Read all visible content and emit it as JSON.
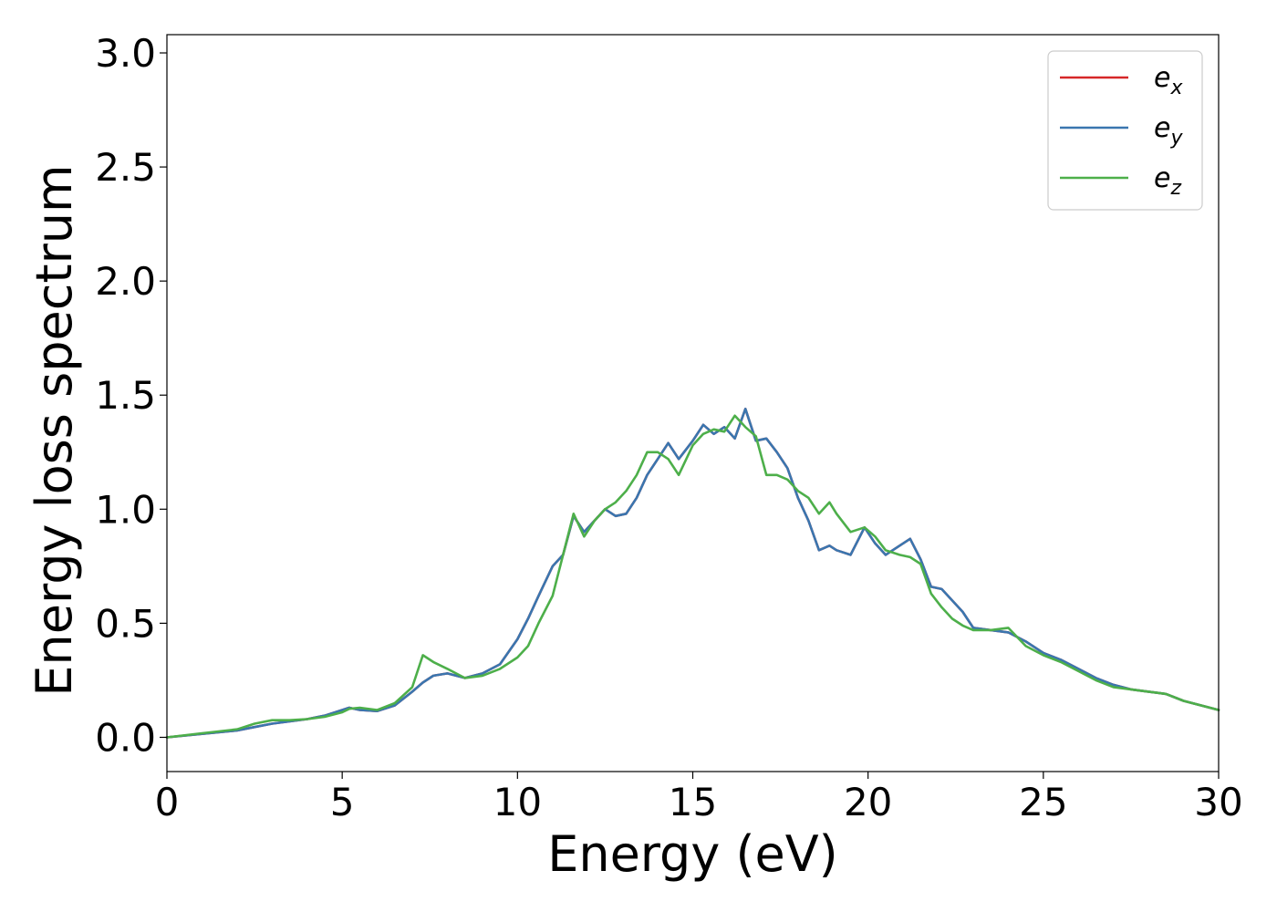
{
  "chart_data": {
    "type": "line",
    "title": "",
    "xlabel": "Energy (eV)",
    "ylabel": "Energy loss spectrum",
    "xlim": [
      0,
      30
    ],
    "ylim": [
      -0.15,
      3.08
    ],
    "xticks": [
      0,
      5,
      10,
      15,
      20,
      25,
      30
    ],
    "yticks": [
      0.0,
      0.5,
      1.0,
      1.5,
      2.0,
      2.5,
      3.0
    ],
    "xtick_labels": [
      "0",
      "5",
      "10",
      "15",
      "20",
      "25",
      "30"
    ],
    "ytick_labels": [
      "0.0",
      "0.5",
      "1.0",
      "1.5",
      "2.0",
      "2.5",
      "3.0"
    ],
    "grid": false,
    "legend": "top-right",
    "series": [
      {
        "name": "e_x",
        "label_base": "e",
        "label_sub": "x",
        "color": "#d62728",
        "x": [
          0,
          1,
          2,
          2.5,
          3,
          3.5,
          4,
          4.5,
          5,
          5.2,
          5.5,
          6,
          6.5,
          7,
          7.3,
          7.6,
          8,
          8.5,
          9,
          9.5,
          10,
          10.3,
          10.6,
          11,
          11.3,
          11.6,
          11.9,
          12.2,
          12.5,
          12.8,
          13.1,
          13.4,
          13.7,
          14,
          14.3,
          14.6,
          15,
          15.3,
          15.6,
          15.9,
          16.2,
          16.5,
          16.8,
          17.1,
          17.4,
          17.7,
          18,
          18.3,
          18.6,
          18.9,
          19.1,
          19.5,
          19.9,
          20.2,
          20.5,
          20.9,
          21.2,
          21.5,
          21.8,
          22.1,
          22.4,
          22.7,
          23,
          23.5,
          24,
          24.5,
          25,
          25.5,
          26,
          26.5,
          27,
          27.5,
          28,
          28.5,
          29,
          29.5,
          30
        ],
        "values": [
          0.0,
          0.015,
          0.03,
          0.045,
          0.06,
          0.07,
          0.08,
          0.095,
          0.12,
          0.13,
          0.12,
          0.115,
          0.14,
          0.2,
          0.24,
          0.27,
          0.28,
          0.26,
          0.28,
          0.32,
          0.43,
          0.52,
          0.62,
          0.75,
          0.8,
          0.97,
          0.9,
          0.95,
          1.0,
          0.97,
          0.98,
          1.05,
          1.15,
          1.22,
          1.29,
          1.22,
          1.3,
          1.37,
          1.33,
          1.36,
          1.31,
          1.44,
          1.3,
          1.31,
          1.25,
          1.18,
          1.05,
          0.95,
          0.82,
          0.84,
          0.82,
          0.8,
          0.92,
          0.85,
          0.8,
          0.84,
          0.87,
          0.78,
          0.66,
          0.65,
          0.6,
          0.55,
          0.48,
          0.47,
          0.46,
          0.42,
          0.37,
          0.34,
          0.3,
          0.26,
          0.23,
          0.21,
          0.2,
          0.19,
          0.16,
          0.14,
          0.12
        ]
      },
      {
        "name": "e_y",
        "label_base": "e",
        "label_sub": "y",
        "color": "#3a76af",
        "x": [
          0,
          1,
          2,
          2.5,
          3,
          3.5,
          4,
          4.5,
          5,
          5.2,
          5.5,
          6,
          6.5,
          7,
          7.3,
          7.6,
          8,
          8.5,
          9,
          9.5,
          10,
          10.3,
          10.6,
          11,
          11.3,
          11.6,
          11.9,
          12.2,
          12.5,
          12.8,
          13.1,
          13.4,
          13.7,
          14,
          14.3,
          14.6,
          15,
          15.3,
          15.6,
          15.9,
          16.2,
          16.5,
          16.8,
          17.1,
          17.4,
          17.7,
          18,
          18.3,
          18.6,
          18.9,
          19.1,
          19.5,
          19.9,
          20.2,
          20.5,
          20.9,
          21.2,
          21.5,
          21.8,
          22.1,
          22.4,
          22.7,
          23,
          23.5,
          24,
          24.5,
          25,
          25.5,
          26,
          26.5,
          27,
          27.5,
          28,
          28.5,
          29,
          29.5,
          30
        ],
        "values": [
          0.0,
          0.015,
          0.03,
          0.045,
          0.06,
          0.07,
          0.08,
          0.095,
          0.12,
          0.13,
          0.12,
          0.115,
          0.14,
          0.2,
          0.24,
          0.27,
          0.28,
          0.26,
          0.28,
          0.32,
          0.43,
          0.52,
          0.62,
          0.75,
          0.8,
          0.97,
          0.9,
          0.95,
          1.0,
          0.97,
          0.98,
          1.05,
          1.15,
          1.22,
          1.29,
          1.22,
          1.3,
          1.37,
          1.33,
          1.36,
          1.31,
          1.44,
          1.3,
          1.31,
          1.25,
          1.18,
          1.05,
          0.95,
          0.82,
          0.84,
          0.82,
          0.8,
          0.92,
          0.85,
          0.8,
          0.84,
          0.87,
          0.78,
          0.66,
          0.65,
          0.6,
          0.55,
          0.48,
          0.47,
          0.46,
          0.42,
          0.37,
          0.34,
          0.3,
          0.26,
          0.23,
          0.21,
          0.2,
          0.19,
          0.16,
          0.14,
          0.12
        ]
      },
      {
        "name": "e_z",
        "label_base": "e",
        "label_sub": "z",
        "color": "#4daf4a",
        "x": [
          0,
          1,
          2,
          2.5,
          3,
          3.5,
          4,
          4.5,
          5,
          5.2,
          5.5,
          6,
          6.5,
          7,
          7.3,
          7.6,
          8,
          8.5,
          9,
          9.5,
          10,
          10.3,
          10.6,
          11,
          11.3,
          11.6,
          11.9,
          12.2,
          12.5,
          12.8,
          13.1,
          13.4,
          13.7,
          14,
          14.3,
          14.6,
          15,
          15.3,
          15.6,
          15.9,
          16.2,
          16.5,
          16.8,
          17.1,
          17.4,
          17.7,
          18,
          18.3,
          18.6,
          18.9,
          19.1,
          19.5,
          19.9,
          20.2,
          20.5,
          20.9,
          21.2,
          21.5,
          21.8,
          22.1,
          22.4,
          22.7,
          23,
          23.5,
          24,
          24.5,
          25,
          25.5,
          26,
          26.5,
          27,
          27.5,
          28,
          28.5,
          29,
          29.5,
          30
        ],
        "values": [
          0.0,
          0.018,
          0.035,
          0.06,
          0.075,
          0.075,
          0.08,
          0.09,
          0.11,
          0.125,
          0.13,
          0.12,
          0.15,
          0.22,
          0.36,
          0.33,
          0.3,
          0.26,
          0.27,
          0.3,
          0.35,
          0.4,
          0.5,
          0.62,
          0.8,
          0.98,
          0.88,
          0.95,
          1.0,
          1.03,
          1.08,
          1.15,
          1.25,
          1.25,
          1.22,
          1.15,
          1.28,
          1.33,
          1.35,
          1.34,
          1.41,
          1.36,
          1.32,
          1.15,
          1.15,
          1.13,
          1.08,
          1.05,
          0.98,
          1.03,
          0.98,
          0.9,
          0.92,
          0.88,
          0.82,
          0.8,
          0.79,
          0.76,
          0.63,
          0.57,
          0.52,
          0.49,
          0.47,
          0.47,
          0.48,
          0.4,
          0.36,
          0.33,
          0.29,
          0.25,
          0.22,
          0.21,
          0.2,
          0.19,
          0.16,
          0.14,
          0.12
        ]
      }
    ]
  }
}
